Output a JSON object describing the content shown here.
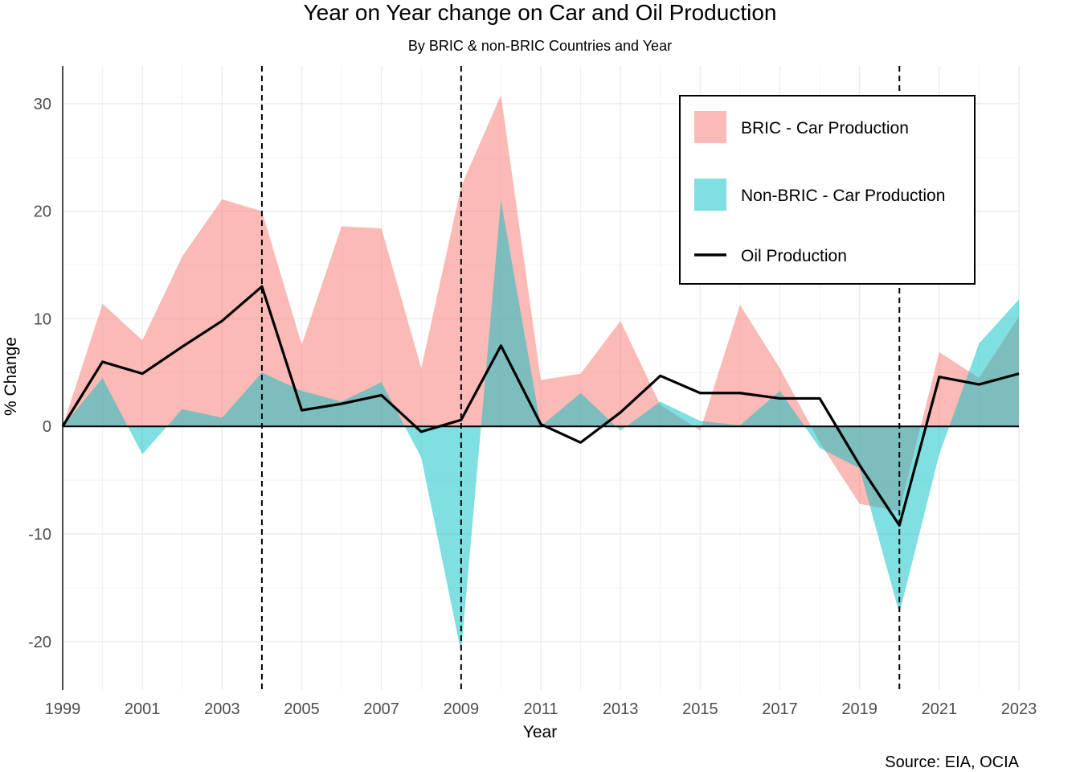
{
  "chart_data": {
    "type": "area",
    "title": "Year on Year change on Car and Oil Production",
    "subtitle": "By BRIC & non-BRIC Countries and Year",
    "xlabel": "Year",
    "ylabel": "% Change",
    "caption": "Source: EIA, OCIA",
    "xlim": [
      1999,
      2023
    ],
    "ylim": [
      -24.5,
      33.5
    ],
    "x_ticks": [
      1999,
      2001,
      2003,
      2005,
      2007,
      2009,
      2011,
      2013,
      2015,
      2017,
      2019,
      2021,
      2023
    ],
    "y_ticks": [
      -20,
      -10,
      0,
      10,
      20,
      30
    ],
    "grid": true,
    "legend_position": "top-right",
    "reference_lines": [
      2004,
      2009,
      2020
    ],
    "x": [
      1999,
      2000,
      2001,
      2002,
      2003,
      2004,
      2005,
      2006,
      2007,
      2008,
      2009,
      2010,
      2011,
      2012,
      2013,
      2014,
      2015,
      2016,
      2017,
      2018,
      2019,
      2020,
      2021,
      2022,
      2023
    ],
    "series": [
      {
        "name": "BRIC - Car Production",
        "type": "area",
        "color": "#F8766D",
        "values": [
          0,
          11.4,
          8.0,
          15.8,
          21.1,
          20.0,
          7.6,
          18.6,
          18.4,
          5.4,
          22.3,
          30.8,
          4.3,
          4.9,
          9.8,
          2.0,
          -0.4,
          11.3,
          5.4,
          -1.5,
          -7.2,
          -7.9,
          6.9,
          4.5,
          10.2
        ]
      },
      {
        "name": "Non-BRIC - Car Production",
        "type": "area",
        "color": "#00BFC4",
        "values": [
          0,
          4.5,
          -2.6,
          1.6,
          0.8,
          5.0,
          3.3,
          2.3,
          4.1,
          -2.9,
          -21.0,
          21.0,
          0,
          3.1,
          -0.4,
          2.3,
          0.5,
          0.1,
          3.3,
          -2.0,
          -3.9,
          -17.4,
          -2.6,
          7.7,
          11.8
        ]
      },
      {
        "name": "Oil Production",
        "type": "line",
        "color": "#000000",
        "values": [
          0,
          6.0,
          4.9,
          7.4,
          9.8,
          13.0,
          1.5,
          2.1,
          2.9,
          -0.5,
          0.6,
          7.5,
          0.2,
          -1.5,
          1.3,
          4.7,
          3.1,
          3.1,
          2.6,
          2.6,
          -3.6,
          -9.2,
          4.6,
          3.9,
          4.9
        ]
      }
    ]
  }
}
